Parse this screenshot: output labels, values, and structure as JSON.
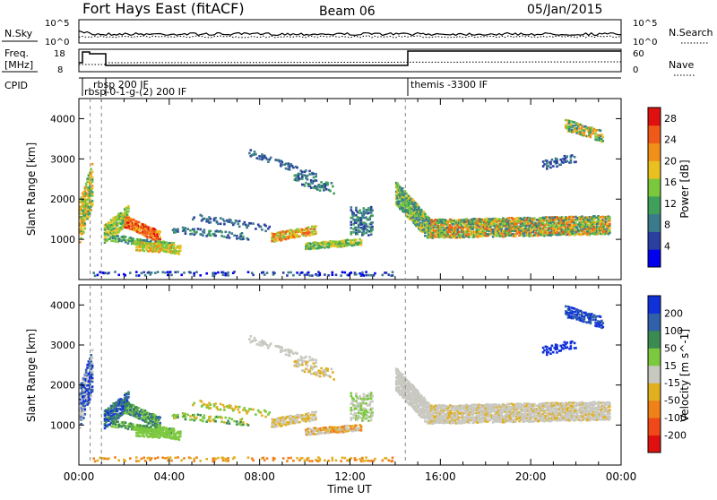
{
  "header": {
    "title": "Fort Hays East (fitACF)",
    "beam": "Beam 06",
    "date": "05/Jan/2015"
  },
  "top_panels": {
    "nsky_label": "N.Sky",
    "nsearch_label": "N.Search",
    "nsky_ticks": [
      "10^5",
      "10^0"
    ],
    "nsearch_ticks": [
      "10^5",
      "10^0"
    ],
    "freq_label_1": "Freq.",
    "freq_label_2": "[MHz]",
    "freq_ticks": [
      "18",
      "8"
    ],
    "nave_label": "Nave",
    "nave_ticks": [
      "60",
      "0"
    ],
    "cpid_label": "CPID"
  },
  "cpid_annotations": [
    {
      "text": "rbsp 200 IF",
      "time_h": 1.0
    },
    {
      "text": "rbsp-0-1-g-(2) 200 IF",
      "time_h": 0.5
    },
    {
      "text": "themis -3300 IF",
      "time_h": 14.45
    }
  ],
  "cpid_markers_h": [
    0.5,
    1.0,
    14.45
  ],
  "chart_data": [
    {
      "type": "heatmap",
      "title": "Power",
      "ylabel": "Slant Range [km]",
      "xlabel": "Time UT",
      "x_ticks": [
        "00:00",
        "04:00",
        "08:00",
        "12:00",
        "16:00",
        "20:00",
        "00:00"
      ],
      "xlim_hours": [
        0,
        24
      ],
      "ylim_km": [
        0,
        4500
      ],
      "y_ticks": [
        1000,
        2000,
        3000,
        4000
      ],
      "colorbar": {
        "label": "Power [dB]",
        "ticks": [
          4,
          8,
          12,
          16,
          20,
          24,
          28
        ],
        "range": [
          0,
          30
        ],
        "colors": [
          "#0000ee",
          "#2a3fa0",
          "#3a7a8a",
          "#3fa05a",
          "#7ac83c",
          "#e8c020",
          "#f09018",
          "#f05a18",
          "#e01010"
        ]
      }
    },
    {
      "type": "heatmap",
      "title": "Velocity",
      "ylabel": "Slant Range [km]",
      "xlabel": "Time UT",
      "x_ticks": [
        "00:00",
        "04:00",
        "08:00",
        "12:00",
        "16:00",
        "20:00",
        "00:00"
      ],
      "xlim_hours": [
        0,
        24
      ],
      "ylim_km": [
        0,
        4500
      ],
      "y_ticks": [
        1000,
        2000,
        3000,
        4000
      ],
      "colorbar": {
        "label": "Velocity [m s^-1]",
        "ticks": [
          "200",
          "100",
          "50",
          "15",
          "-15",
          "-50",
          "-100",
          "-200"
        ],
        "colors": [
          "#1030d8",
          "#2f60a8",
          "#3b8a52",
          "#7cc83e",
          "#c8c8c0",
          "#e0b020",
          "#f08018",
          "#f04818",
          "#e01010"
        ]
      }
    }
  ]
}
